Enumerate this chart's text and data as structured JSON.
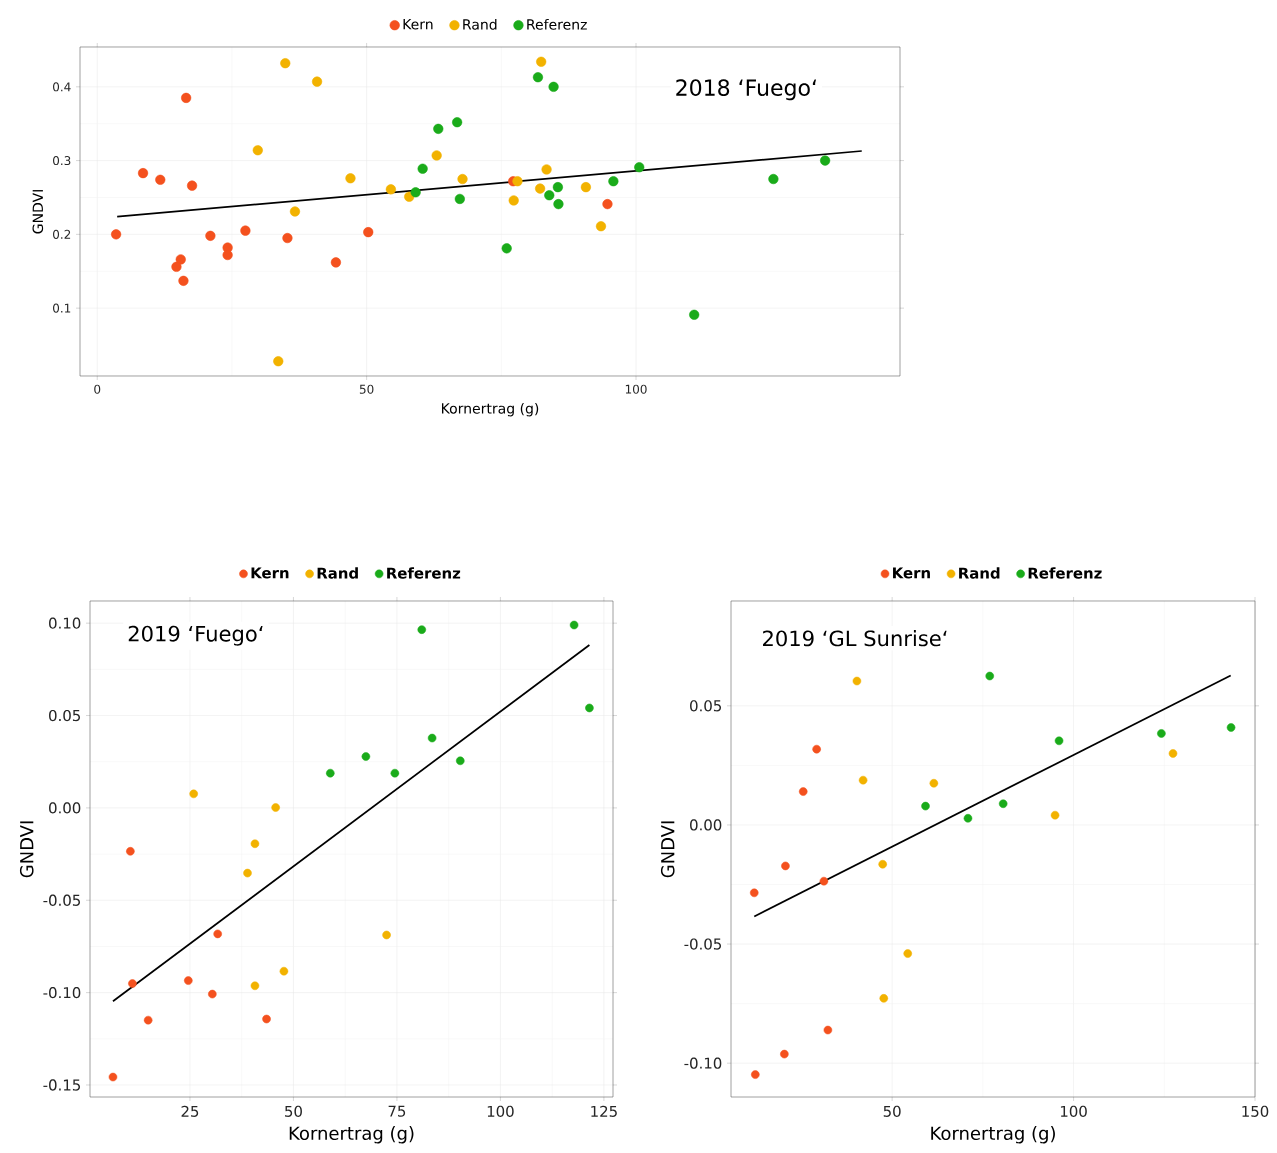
{
  "chart_data": [
    {
      "type": "scatter",
      "title": "2018 ‘Fuego‘",
      "xlabel": "Kornertrag (g)",
      "ylabel": "GNDVI",
      "xlim": [
        -3.2,
        149
      ],
      "ylim": [
        0.008,
        0.454
      ],
      "xticks": [
        0,
        50,
        100
      ],
      "yticks": [
        0.1,
        0.2,
        0.3,
        0.4
      ],
      "grid": true,
      "legend": "top",
      "marker": "circle",
      "series": [
        {
          "name": "Kern",
          "color": "#f4511e",
          "x": [
            3.5,
            8.5,
            11.7,
            16.5,
            17.6,
            21,
            24.2,
            24.2,
            27.5,
            15.5,
            14.7,
            16,
            35.3,
            44.3,
            50.3,
            77.2,
            94.7
          ],
          "values": [
            0.2,
            0.283,
            0.274,
            0.385,
            0.266,
            0.198,
            0.182,
            0.172,
            0.205,
            0.166,
            0.156,
            0.137,
            0.195,
            0.162,
            0.203,
            0.272,
            0.241
          ]
        },
        {
          "name": "Rand",
          "color": "#f2b200",
          "x": [
            34.9,
            40.8,
            29.8,
            47,
            36.7,
            33.6,
            54.5,
            57.9,
            63,
            67.8,
            82.4,
            83.4,
            78,
            82.2,
            77.3,
            90.7,
            93.5
          ],
          "values": [
            0.432,
            0.407,
            0.314,
            0.276,
            0.231,
            0.028,
            0.261,
            0.251,
            0.307,
            0.275,
            0.434,
            0.288,
            0.272,
            0.262,
            0.246,
            0.264,
            0.211
          ]
        },
        {
          "name": "Referenz",
          "color": "#1aab1a",
          "x": [
            66.8,
            63.3,
            60.4,
            59.1,
            67.3,
            81.8,
            84.7,
            85.5,
            83.9,
            85.6,
            76,
            100.6,
            95.8,
            110.8,
            125.5,
            135.1
          ],
          "values": [
            0.352,
            0.343,
            0.289,
            0.257,
            0.248,
            0.413,
            0.4,
            0.264,
            0.253,
            0.241,
            0.181,
            0.291,
            0.272,
            0.091,
            0.275,
            0.3
          ]
        },
        {
          "type": "line",
          "marker": "none",
          "color": "#000000",
          "x": [
            3.7,
            141.9
          ],
          "values": [
            0.224,
            0.313
          ]
        }
      ]
    },
    {
      "type": "scatter",
      "title": "2019 ‘Fuego‘",
      "xlabel": "Kornertrag (g)",
      "ylabel": "GNDVI",
      "xlim": [
        0.85,
        127.2
      ],
      "ylim": [
        -0.1565,
        0.112
      ],
      "xticks": [
        25,
        50,
        75,
        100,
        125
      ],
      "yticks": [
        {
          "value": 0.1,
          "label": "0.10"
        },
        {
          "value": 0.05,
          "label": "0.05"
        },
        {
          "value": 0,
          "label": "0.00"
        },
        {
          "value": -0.05,
          "label": "-0.05"
        },
        {
          "value": -0.1,
          "label": "-0.10"
        },
        {
          "value": -0.15,
          "label": "-0.15"
        }
      ],
      "grid": true,
      "legend": "top",
      "marker": "circle",
      "series": [
        {
          "name": "Kern",
          "color": "#f4511e",
          "x": [
            6.4,
            10.6,
            11.1,
            14.9,
            24.6,
            30.4,
            31.7,
            43.5
          ],
          "values": [
            -0.1457,
            -0.0235,
            -0.0951,
            -0.1149,
            -0.0935,
            -0.1008,
            -0.0682,
            -0.1143
          ]
        },
        {
          "name": "Rand",
          "color": "#f2b200",
          "x": [
            25.9,
            45.7,
            40.7,
            38.9,
            72.5,
            47.7,
            40.7
          ],
          "values": [
            0.0076,
            0.0002,
            -0.0194,
            -0.0353,
            -0.0688,
            -0.0884,
            -0.0963
          ]
        },
        {
          "name": "Referenz",
          "color": "#1aab1a",
          "x": [
            81,
            117.8,
            121.5,
            83.5,
            67.5,
            58.9,
            74.5,
            90.3
          ],
          "values": [
            0.0965,
            0.099,
            0.0541,
            0.0378,
            0.0278,
            0.0188,
            0.0188,
            0.0255
          ]
        },
        {
          "type": "line",
          "marker": "none",
          "color": "#000000",
          "x": [
            6.4,
            121.5
          ],
          "values": [
            -0.1047,
            0.0882
          ]
        }
      ]
    },
    {
      "type": "scatter",
      "title": "2019 ‘GL Sunrise‘",
      "xlabel": "Kornertrag (g)",
      "ylabel": "GNDVI",
      "xlim": [
        5.6,
        150
      ],
      "ylim": [
        -0.1142,
        0.094
      ],
      "xticks": [
        50,
        100,
        150
      ],
      "yticks": [
        {
          "value": 0.05,
          "label": "0.05"
        },
        {
          "value": 0,
          "label": "0.00"
        },
        {
          "value": -0.05,
          "label": "-0.05"
        },
        {
          "value": -0.1,
          "label": "-0.10"
        }
      ],
      "grid": true,
      "legend": "top",
      "marker": "circle",
      "series": [
        {
          "name": "Kern",
          "color": "#f4511e",
          "x": [
            12,
            12.3,
            20.6,
            20.3,
            25.5,
            29.2,
            31.2,
            32.3
          ],
          "values": [
            -0.0285,
            -0.1048,
            -0.0172,
            -0.0962,
            0.014,
            0.0318,
            -0.0236,
            -0.0861
          ]
        },
        {
          "name": "Rand",
          "color": "#f2b200",
          "x": [
            40.3,
            42,
            61.5,
            47.4,
            54.3,
            47.7,
            94.9,
            127.4
          ],
          "values": [
            0.0604,
            0.0188,
            0.0175,
            -0.0165,
            -0.054,
            -0.0728,
            0.0041,
            0.03
          ]
        },
        {
          "name": "Referenz",
          "color": "#1aab1a",
          "x": [
            76.9,
            59.2,
            70.9,
            80.6,
            96,
            124.2,
            143.4
          ],
          "values": [
            0.0625,
            0.0079,
            0.0028,
            0.0089,
            0.0353,
            0.0384,
            0.0409
          ]
        },
        {
          "type": "line",
          "marker": "none",
          "color": "#000000",
          "x": [
            12,
            143.3
          ],
          "values": [
            -0.0384,
            0.0627
          ]
        }
      ]
    }
  ]
}
